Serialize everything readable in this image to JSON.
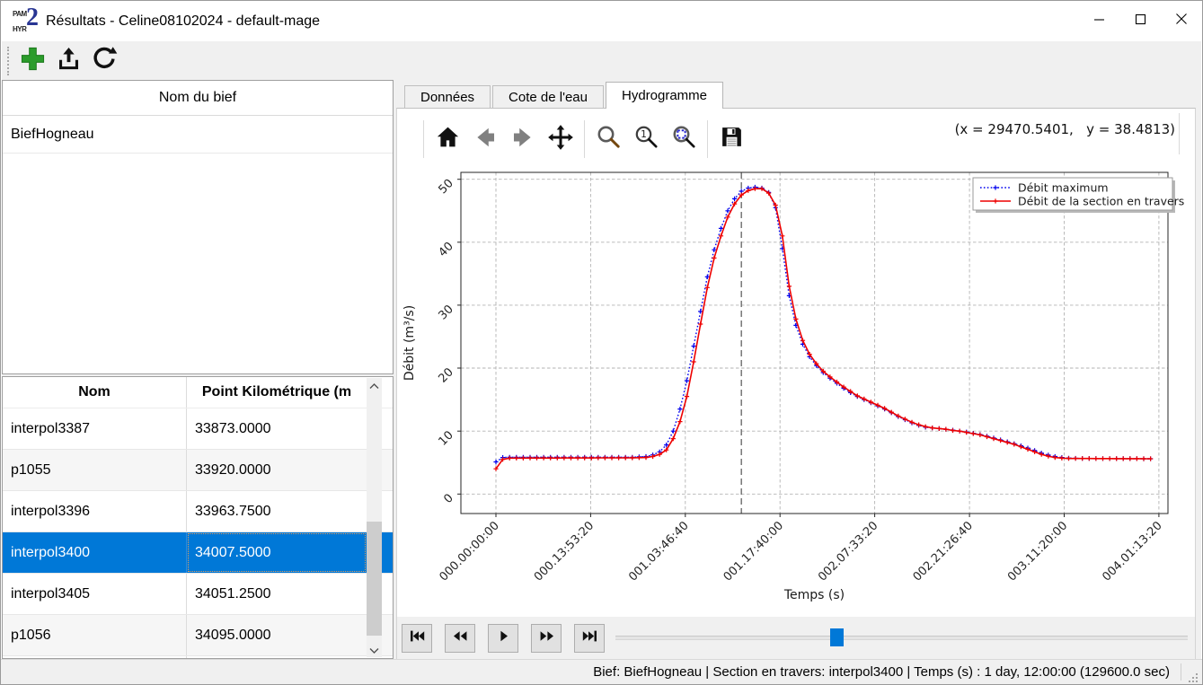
{
  "window": {
    "title": "Résultats - Celine08102024 - default-mage",
    "controls": [
      {
        "name": "minimize",
        "icon": "minimize-icon"
      },
      {
        "name": "maximize",
        "icon": "maximize-icon"
      },
      {
        "name": "close",
        "icon": "close-icon"
      }
    ]
  },
  "toolbar": {
    "buttons": [
      {
        "name": "add",
        "icon": "add-icon"
      },
      {
        "name": "export",
        "icon": "export-icon"
      },
      {
        "name": "reload",
        "icon": "reload-icon"
      }
    ]
  },
  "reach_panel": {
    "header": "Nom du bief",
    "items": [
      "BiefHogneau"
    ]
  },
  "sections_table": {
    "columns": [
      "Nom",
      "Point Kilométrique (m"
    ],
    "rows": [
      [
        "interpol3387",
        "33873.0000"
      ],
      [
        "p1055",
        "33920.0000"
      ],
      [
        "interpol3396",
        "33963.7500"
      ],
      [
        "interpol3400",
        "34007.5000"
      ],
      [
        "interpol3405",
        "34051.2500"
      ],
      [
        "p1056",
        "34095.0000"
      ]
    ],
    "selected_row": 3
  },
  "tabs": [
    {
      "label": "Données",
      "active": false
    },
    {
      "label": "Cote de l'eau",
      "active": false
    },
    {
      "label": "Hydrogramme",
      "active": true
    }
  ],
  "mpl_toolbar": {
    "groups": [
      [
        "home",
        "back",
        "forward",
        "pan"
      ],
      [
        "zoom",
        "zoom-one",
        "zoom-fit"
      ],
      [
        "save"
      ]
    ],
    "coords": "(x = 29470.5401,   y = 38.4813)"
  },
  "chart_data": {
    "type": "line",
    "xlabel": "Temps (s)",
    "ylabel": "Débit (m³/s)",
    "xlim": [
      -18500,
      354800
    ],
    "ylim": [
      -3.1,
      51.1
    ],
    "grid": true,
    "legend_position": "upper right",
    "cursor_time": 129600,
    "marker_interval": 3600,
    "x_ticks": [
      {
        "value": 0,
        "label": "000.00:00:00"
      },
      {
        "value": 50000,
        "label": "000.13:53:20"
      },
      {
        "value": 100000,
        "label": "001.03:46:40"
      },
      {
        "value": 150000,
        "label": "001.17:40:00"
      },
      {
        "value": 200000,
        "label": "002.07:33:20"
      },
      {
        "value": 250000,
        "label": "002.21:26:40"
      },
      {
        "value": 300000,
        "label": "003.11:20:00"
      },
      {
        "value": 350000,
        "label": "004.01:13:20"
      }
    ],
    "y_ticks": [
      0,
      10,
      20,
      30,
      40,
      50
    ],
    "series": [
      {
        "name": "Débit maximum",
        "color": "#0000ee",
        "style": "dotted",
        "marker": "plus",
        "points": [
          [
            0,
            5.1
          ],
          [
            3600,
            5.8
          ],
          [
            7200,
            5.85
          ],
          [
            72000,
            5.85
          ],
          [
            79200,
            5.95
          ],
          [
            84000,
            6.3
          ],
          [
            86400,
            6.7
          ],
          [
            90000,
            7.8
          ],
          [
            93600,
            10.0
          ],
          [
            97200,
            13.5
          ],
          [
            100800,
            18.0
          ],
          [
            104400,
            23.5
          ],
          [
            108000,
            29.0
          ],
          [
            111600,
            34.5
          ],
          [
            115200,
            38.8
          ],
          [
            118800,
            42.2
          ],
          [
            122400,
            45.0
          ],
          [
            126000,
            46.9
          ],
          [
            129600,
            48.1
          ],
          [
            133200,
            48.6
          ],
          [
            136800,
            48.75
          ],
          [
            140400,
            48.6
          ],
          [
            144000,
            47.9
          ],
          [
            147600,
            45.5
          ],
          [
            151200,
            39.0
          ],
          [
            154800,
            31.5
          ],
          [
            158400,
            26.8
          ],
          [
            162000,
            23.8
          ],
          [
            165600,
            21.8
          ],
          [
            169200,
            20.4
          ],
          [
            172800,
            19.3
          ],
          [
            176400,
            18.4
          ],
          [
            180000,
            17.6
          ],
          [
            183600,
            16.8
          ],
          [
            187200,
            16.1
          ],
          [
            190800,
            15.5
          ],
          [
            194400,
            15.0
          ],
          [
            198000,
            14.5
          ],
          [
            201600,
            14.0
          ],
          [
            205200,
            13.5
          ],
          [
            208800,
            12.9
          ],
          [
            212400,
            12.3
          ],
          [
            216000,
            11.8
          ],
          [
            219600,
            11.3
          ],
          [
            223200,
            10.9
          ],
          [
            226800,
            10.6
          ],
          [
            230400,
            10.5
          ],
          [
            234000,
            10.4
          ],
          [
            237600,
            10.3
          ],
          [
            241200,
            10.15
          ],
          [
            244800,
            10.0
          ],
          [
            248400,
            9.85
          ],
          [
            252000,
            9.65
          ],
          [
            255600,
            9.45
          ],
          [
            259200,
            9.2
          ],
          [
            262800,
            8.9
          ],
          [
            266400,
            8.6
          ],
          [
            270000,
            8.3
          ],
          [
            273600,
            8.0
          ],
          [
            277200,
            7.65
          ],
          [
            280800,
            7.3
          ],
          [
            284400,
            6.9
          ],
          [
            288000,
            6.5
          ],
          [
            291600,
            6.2
          ],
          [
            295200,
            5.95
          ],
          [
            298800,
            5.8
          ],
          [
            302400,
            5.7
          ],
          [
            309600,
            5.65
          ],
          [
            345600,
            5.6
          ]
        ]
      },
      {
        "name": "Débit de la section en travers",
        "color": "#ee0000",
        "style": "solid",
        "marker": "plus",
        "points": [
          [
            0,
            4.0
          ],
          [
            3600,
            5.5
          ],
          [
            7200,
            5.7
          ],
          [
            72000,
            5.75
          ],
          [
            79200,
            5.8
          ],
          [
            84000,
            6.0
          ],
          [
            86400,
            6.3
          ],
          [
            90000,
            7.0
          ],
          [
            93600,
            8.8
          ],
          [
            97200,
            11.5
          ],
          [
            100800,
            15.5
          ],
          [
            104400,
            21.0
          ],
          [
            108000,
            27.0
          ],
          [
            111600,
            32.8
          ],
          [
            115200,
            37.5
          ],
          [
            118800,
            41.0
          ],
          [
            122400,
            44.0
          ],
          [
            126000,
            46.1
          ],
          [
            129600,
            47.5
          ],
          [
            133200,
            48.2
          ],
          [
            136800,
            48.5
          ],
          [
            140400,
            48.5
          ],
          [
            144000,
            47.8
          ],
          [
            147600,
            45.9
          ],
          [
            151200,
            41.0
          ],
          [
            154800,
            33.0
          ],
          [
            158400,
            27.8
          ],
          [
            162000,
            24.4
          ],
          [
            165600,
            22.2
          ],
          [
            169200,
            20.7
          ],
          [
            172800,
            19.5
          ],
          [
            176400,
            18.6
          ],
          [
            180000,
            17.8
          ],
          [
            183600,
            17.0
          ],
          [
            187200,
            16.3
          ],
          [
            190800,
            15.6
          ],
          [
            194400,
            15.1
          ],
          [
            198000,
            14.6
          ],
          [
            201600,
            14.1
          ],
          [
            205200,
            13.6
          ],
          [
            208800,
            13.0
          ],
          [
            212400,
            12.4
          ],
          [
            216000,
            11.9
          ],
          [
            219600,
            11.4
          ],
          [
            223200,
            11.0
          ],
          [
            226800,
            10.7
          ],
          [
            230400,
            10.5
          ],
          [
            234000,
            10.4
          ],
          [
            237600,
            10.3
          ],
          [
            241200,
            10.1
          ],
          [
            244800,
            10.0
          ],
          [
            248400,
            9.8
          ],
          [
            252000,
            9.6
          ],
          [
            255600,
            9.4
          ],
          [
            259200,
            9.1
          ],
          [
            262800,
            8.8
          ],
          [
            266400,
            8.5
          ],
          [
            270000,
            8.2
          ],
          [
            273600,
            7.9
          ],
          [
            277200,
            7.5
          ],
          [
            280800,
            7.1
          ],
          [
            284400,
            6.7
          ],
          [
            288000,
            6.3
          ],
          [
            291600,
            6.0
          ],
          [
            295200,
            5.8
          ],
          [
            298800,
            5.7
          ],
          [
            302400,
            5.65
          ],
          [
            345600,
            5.6
          ]
        ]
      }
    ]
  },
  "player": {
    "buttons": [
      "skip-start",
      "rewind",
      "play",
      "fast-forward",
      "skip-end"
    ],
    "slider_percent": 38.5
  },
  "status_bar": {
    "text": "Bief: BiefHogneau | Section en travers: interpol3400 | Temps (s) : 1 day, 12:00:00 (129600.0 sec)"
  }
}
